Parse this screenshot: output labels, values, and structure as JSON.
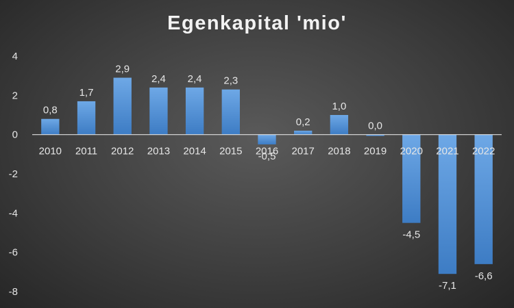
{
  "chart_data": {
    "type": "bar",
    "title": "Egenkapital 'mio'",
    "xlabel": "",
    "ylabel": "",
    "categories": [
      "2010",
      "2011",
      "2012",
      "2013",
      "2014",
      "2015",
      "2016",
      "2017",
      "2018",
      "2019",
      "2020",
      "2021",
      "2022"
    ],
    "values": [
      0.8,
      1.7,
      2.9,
      2.4,
      2.4,
      2.3,
      -0.5,
      0.2,
      1.0,
      0.0,
      -4.5,
      -7.1,
      -6.6
    ],
    "data_labels": [
      "0,8",
      "1,7",
      "2,9",
      "2,4",
      "2,4",
      "2,3",
      "-0,5",
      "0,2",
      "1,0",
      "0,0",
      "-4,5",
      "-7,1",
      "-6,6"
    ],
    "y_ticks": [
      4,
      2,
      0,
      -2,
      -4,
      -6,
      -8
    ],
    "y_tick_labels": [
      "4",
      "2",
      "0",
      "-2",
      "-4",
      "-6",
      "-8"
    ],
    "ylim": [
      -8,
      4
    ],
    "grid": false,
    "legend": "none",
    "colors": {
      "bar_top": "#6ea8e6",
      "bar_bottom": "#3d7cc4",
      "axis": "#e0e0e0",
      "text": "#e6e6e6"
    }
  }
}
